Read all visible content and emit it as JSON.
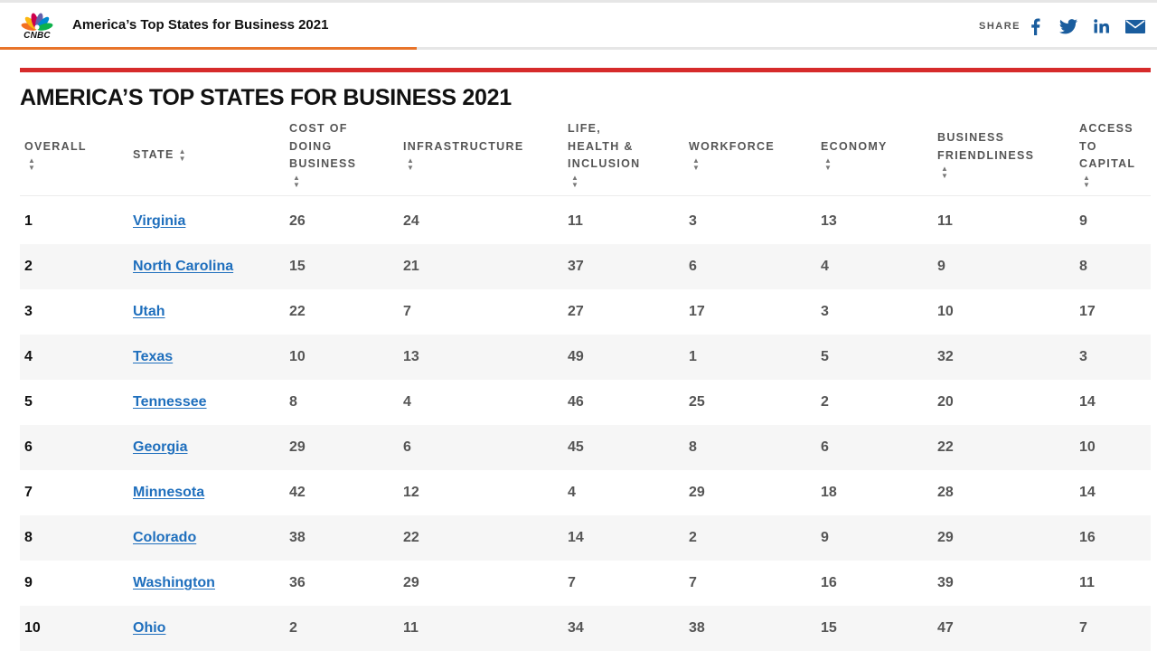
{
  "header": {
    "logo_text": "CNBC",
    "title": "America’s Top States for Business 2021",
    "share_label": "SHARE",
    "share_icons": [
      "facebook-icon",
      "twitter-icon",
      "linkedin-icon",
      "email-icon"
    ],
    "scroll_progress_fraction": 0.36
  },
  "colors": {
    "accent_red": "#d62b2b",
    "progress_orange": "#e8742a",
    "link_blue": "#1f6fbd",
    "share_blue": "#1a5d9e",
    "row_alt": "#f6f6f6"
  },
  "page": {
    "title": "AMERICA’S TOP STATES FOR BUSINESS 2021"
  },
  "table": {
    "columns": [
      {
        "key": "overall",
        "lines": [
          "OVERALL"
        ]
      },
      {
        "key": "state",
        "lines": [
          "STATE"
        ]
      },
      {
        "key": "cost",
        "lines": [
          "COST OF",
          "DOING",
          "BUSINESS"
        ]
      },
      {
        "key": "infrastructure",
        "lines": [
          "INFRASTRUCTURE"
        ]
      },
      {
        "key": "life",
        "lines": [
          "LIFE,",
          "HEALTH &",
          "INCLUSION"
        ]
      },
      {
        "key": "workforce",
        "lines": [
          "WORKFORCE"
        ]
      },
      {
        "key": "economy",
        "lines": [
          "ECONOMY"
        ]
      },
      {
        "key": "business",
        "lines": [
          "BUSINESS",
          "FRIENDLINESS"
        ]
      },
      {
        "key": "capital",
        "lines": [
          "ACCESS",
          "TO",
          "CAPITAL"
        ]
      }
    ],
    "rows": [
      {
        "overall": "1",
        "state": "Virginia",
        "cost": "26",
        "infrastructure": "24",
        "life": "11",
        "workforce": "3",
        "economy": "13",
        "business": "11",
        "capital": "9"
      },
      {
        "overall": "2",
        "state": "North Carolina",
        "cost": "15",
        "infrastructure": "21",
        "life": "37",
        "workforce": "6",
        "economy": "4",
        "business": "9",
        "capital": "8"
      },
      {
        "overall": "3",
        "state": "Utah",
        "cost": "22",
        "infrastructure": "7",
        "life": "27",
        "workforce": "17",
        "economy": "3",
        "business": "10",
        "capital": "17"
      },
      {
        "overall": "4",
        "state": "Texas",
        "cost": "10",
        "infrastructure": "13",
        "life": "49",
        "workforce": "1",
        "economy": "5",
        "business": "32",
        "capital": "3"
      },
      {
        "overall": "5",
        "state": "Tennessee",
        "cost": "8",
        "infrastructure": "4",
        "life": "46",
        "workforce": "25",
        "economy": "2",
        "business": "20",
        "capital": "14"
      },
      {
        "overall": "6",
        "state": "Georgia",
        "cost": "29",
        "infrastructure": "6",
        "life": "45",
        "workforce": "8",
        "economy": "6",
        "business": "22",
        "capital": "10"
      },
      {
        "overall": "7",
        "state": "Minnesota",
        "cost": "42",
        "infrastructure": "12",
        "life": "4",
        "workforce": "29",
        "economy": "18",
        "business": "28",
        "capital": "14"
      },
      {
        "overall": "8",
        "state": "Colorado",
        "cost": "38",
        "infrastructure": "22",
        "life": "14",
        "workforce": "2",
        "economy": "9",
        "business": "29",
        "capital": "16"
      },
      {
        "overall": "9",
        "state": "Washington",
        "cost": "36",
        "infrastructure": "29",
        "life": "7",
        "workforce": "7",
        "economy": "16",
        "business": "39",
        "capital": "11"
      },
      {
        "overall": "10",
        "state": "Ohio",
        "cost": "2",
        "infrastructure": "11",
        "life": "34",
        "workforce": "38",
        "economy": "15",
        "business": "47",
        "capital": "7"
      }
    ]
  }
}
